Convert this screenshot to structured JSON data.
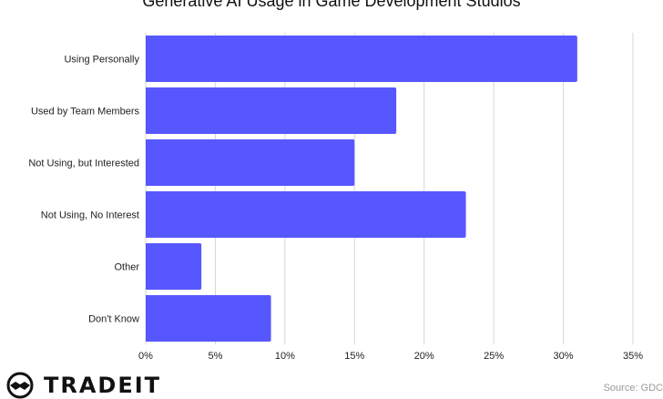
{
  "chart_data": {
    "type": "bar",
    "orientation": "horizontal",
    "title": "Generative AI Usage in Game Development Studios",
    "categories": [
      "Using Personally",
      "Used by Team Members",
      "Not Using, but Interested",
      "Not Using, No Interest",
      "Other",
      "Don't Know"
    ],
    "values": [
      31,
      18,
      15,
      23,
      4,
      9
    ],
    "xlim": [
      0,
      35
    ],
    "xticks": [
      0,
      5,
      10,
      15,
      20,
      25,
      30,
      35
    ],
    "xtick_labels": [
      "0%",
      "5%",
      "10%",
      "15%",
      "20%",
      "25%",
      "30%",
      "35%"
    ],
    "grid": true,
    "bar_color": "#5757ff"
  },
  "brand": {
    "name": "TRADEIT"
  },
  "source": "Source: GDC"
}
